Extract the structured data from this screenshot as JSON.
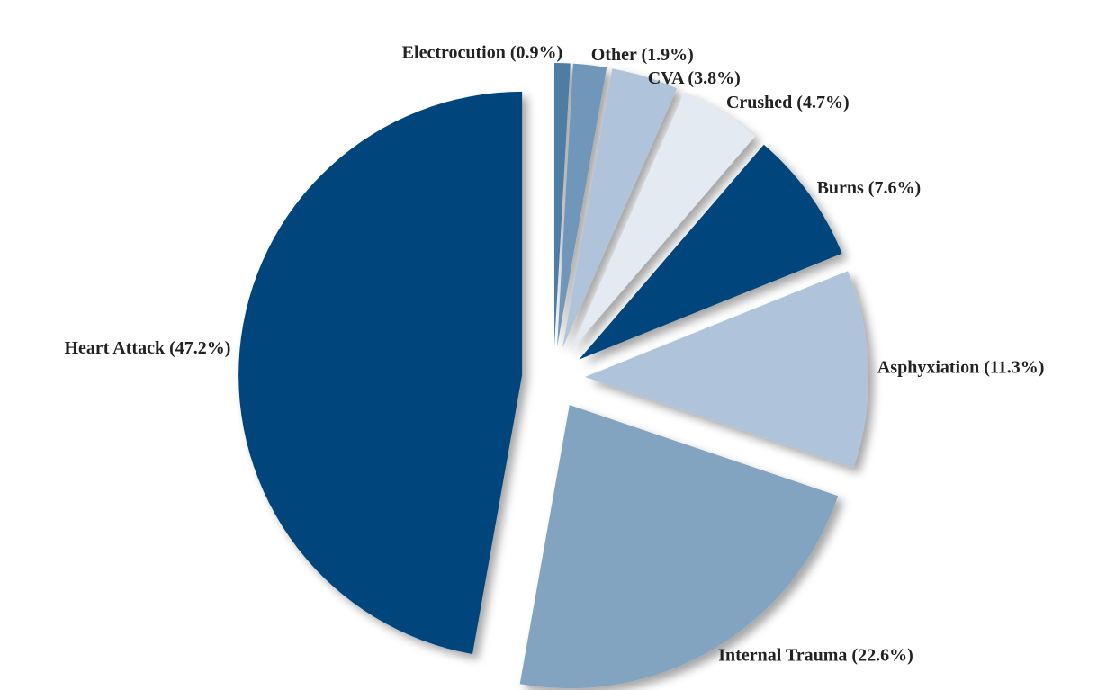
{
  "chart_data": {
    "type": "pie",
    "values": [
      0.9,
      1.9,
      3.8,
      4.7,
      7.6,
      11.3,
      22.6,
      47.2
    ],
    "value_labels": [
      "Electrocution (0.9%)",
      "Other (1.9%)",
      "CVA (3.8%)",
      "Crushed (4.7%)",
      "Burns (7.6%)",
      "Asphyxiation (11.3%)",
      "Internal Trauma (22.6%)",
      "Heart Attack (47.2%)"
    ],
    "colors": [
      "#4e7da5",
      "#6f97ba",
      "#afc4da",
      "#e3eaf2",
      "#00457c",
      "#afc4da",
      "#82a4c0",
      "#00457c"
    ]
  }
}
